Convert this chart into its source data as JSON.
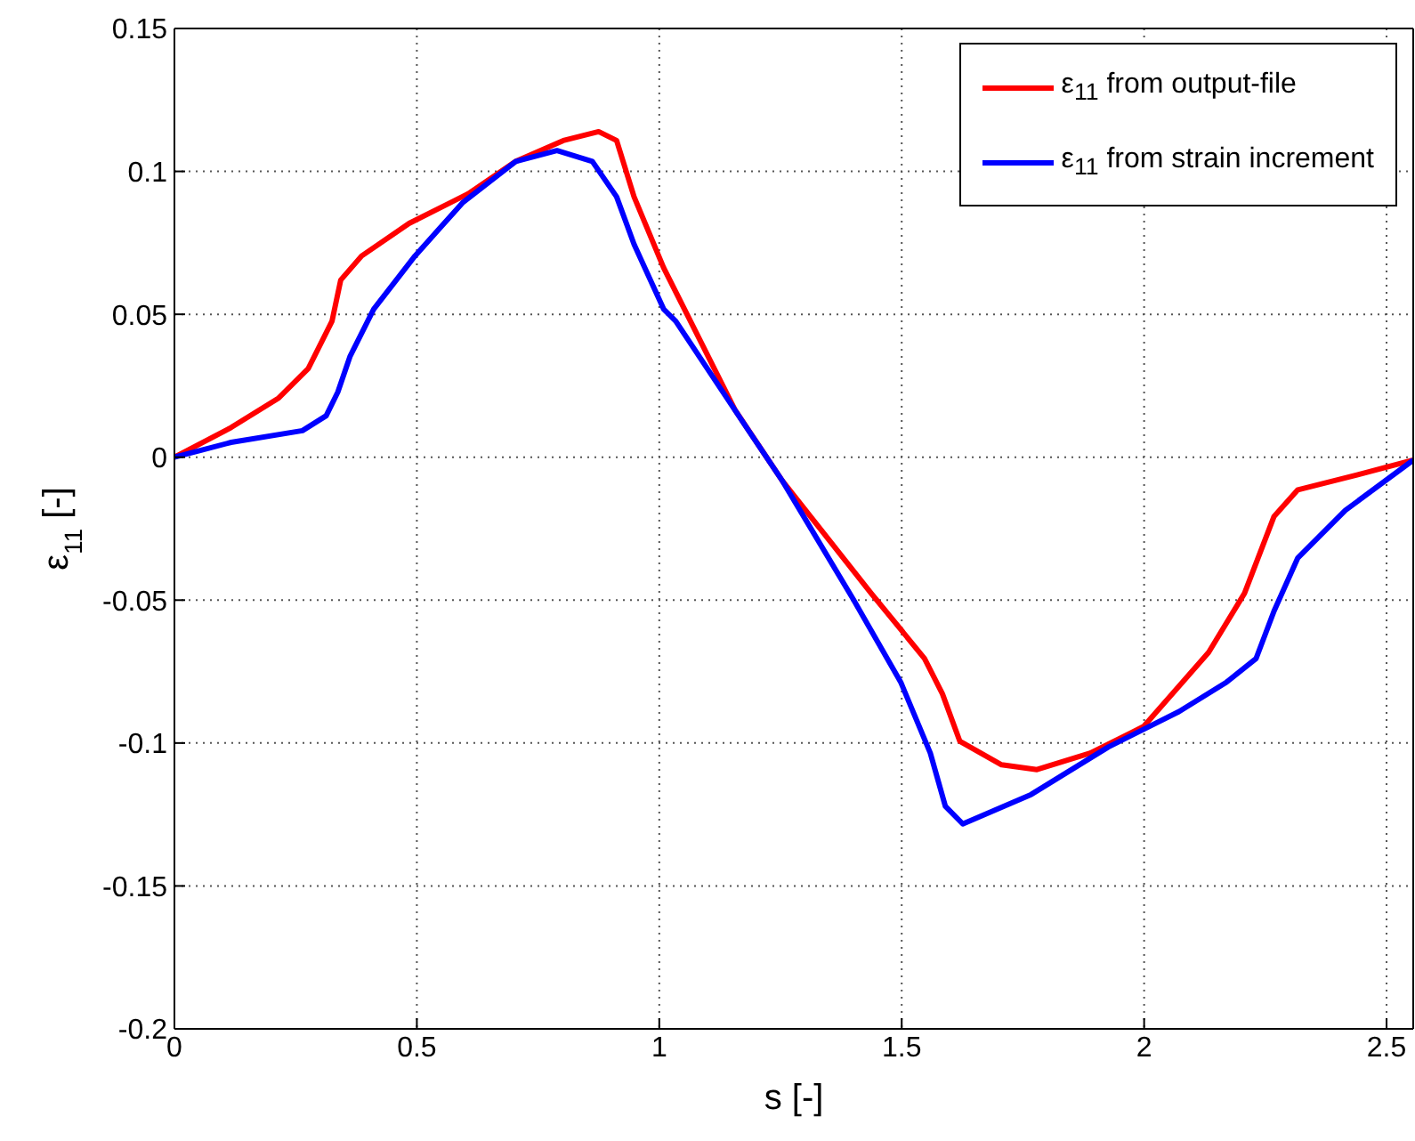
{
  "chart_data": {
    "type": "line",
    "xlabel": "s [-]",
    "ylabel": "ε$_{11}$  [-]",
    "xlim": [
      0,
      2.555
    ],
    "ylim": [
      -0.2,
      0.15
    ],
    "xticks": [
      0,
      0.5,
      1,
      1.5,
      2,
      2.5
    ],
    "yticks": [
      -0.2,
      -0.15,
      -0.1,
      -0.05,
      0,
      0.05,
      0.1,
      0.15
    ],
    "grid": true,
    "legend": "top right",
    "line_style": "solid",
    "series": [
      {
        "name": "ε$_{11}$ from output-file",
        "color": "#ff0000",
        "x": [
          0,
          0.117,
          0.215,
          0.276,
          0.325,
          0.343,
          0.386,
          0.484,
          0.606,
          0.704,
          0.802,
          0.875,
          0.912,
          0.948,
          1.009,
          1.156,
          1.254,
          1.437,
          1.547,
          1.584,
          1.62,
          1.706,
          1.779,
          1.889,
          1.999,
          2.133,
          2.207,
          2.268,
          2.317,
          2.439,
          2.555
        ],
        "values": [
          0,
          0.0104,
          0.0207,
          0.031,
          0.0476,
          0.062,
          0.0704,
          0.0818,
          0.0922,
          0.1035,
          0.1108,
          0.1139,
          0.1108,
          0.0911,
          0.0663,
          0.0166,
          -0.0083,
          -0.0476,
          -0.0704,
          -0.0828,
          -0.0994,
          -0.1076,
          -0.1093,
          -0.1035,
          -0.0942,
          -0.0683,
          -0.0476,
          -0.0207,
          -0.0114,
          -0.0062,
          -0.001
        ]
      },
      {
        "name": "ε$_{11}$ from strain increment",
        "color": "#0000ff",
        "x": [
          0,
          0.117,
          0.264,
          0.313,
          0.337,
          0.362,
          0.411,
          0.496,
          0.594,
          0.704,
          0.789,
          0.862,
          0.912,
          0.948,
          1.009,
          1.034,
          1.18,
          1.254,
          1.4,
          1.498,
          1.559,
          1.59,
          1.626,
          1.767,
          1.926,
          2.072,
          2.17,
          2.231,
          2.268,
          2.317,
          2.415,
          2.555
        ],
        "values": [
          0,
          0.0052,
          0.0093,
          0.0145,
          0.0228,
          0.0352,
          0.0518,
          0.0704,
          0.089,
          0.1035,
          0.1073,
          0.1035,
          0.0911,
          0.0745,
          0.0518,
          0.0476,
          0.0104,
          -0.0083,
          -0.0497,
          -0.0787,
          -0.1035,
          -0.1221,
          -0.1283,
          -0.118,
          -0.1014,
          -0.089,
          -0.0787,
          -0.0704,
          -0.0538,
          -0.0352,
          -0.0186,
          -0.001
        ]
      }
    ]
  }
}
